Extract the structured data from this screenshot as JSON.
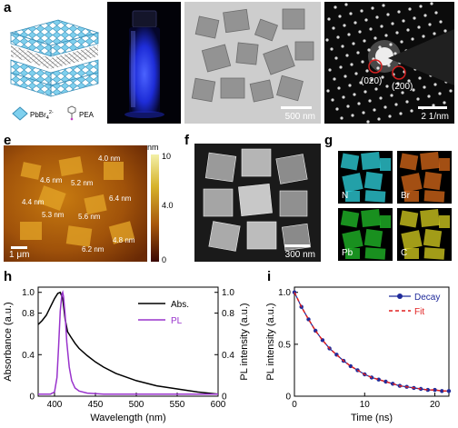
{
  "panels": {
    "a": {
      "label": "a",
      "legend": {
        "octahedron": "PbBr",
        "octahedron_sub": "4",
        "octahedron_sup": "2-",
        "molecule": "PEA"
      },
      "colors": {
        "octahedron": "#7fd0ee",
        "molecule": "#555555"
      }
    },
    "b": {
      "label": "b",
      "colors": {
        "glow": "#2f3bff"
      }
    },
    "c": {
      "label": "c",
      "scale_bar": "500 nm"
    },
    "d": {
      "label": "d",
      "spots": [
        "(020)",
        "(200)"
      ],
      "scale_bar": "2 1/nm",
      "colors": {
        "circle": "#d32020"
      }
    },
    "e": {
      "label": "e",
      "colorbar_unit": "nm",
      "colorbar_ticks": [
        "10",
        "4.0",
        "0"
      ],
      "thickness_labels": [
        "4.0 nm",
        "4.6 nm",
        "5.2 nm",
        "4.4 nm",
        "6.4 nm",
        "5.3 nm",
        "5.6 nm",
        "4.8 nm",
        "6.2 nm"
      ],
      "scale_bar": "1 μm"
    },
    "f": {
      "label": "f",
      "scale_bar": "300 nm"
    },
    "g": {
      "label": "g",
      "maps": [
        {
          "element": "N",
          "color": "#2fd6e0"
        },
        {
          "element": "Br",
          "color": "#d96a1a"
        },
        {
          "element": "Pb",
          "color": "#22c02a"
        },
        {
          "element": "C",
          "color": "#d8d020"
        }
      ]
    },
    "h": {
      "label": "h"
    },
    "i": {
      "label": "i"
    }
  },
  "chart_data": [
    {
      "panel": "h",
      "type": "line",
      "xlabel": "Wavelength (nm)",
      "ylabel_left": "Absorbance (a.u.)",
      "ylabel_right": "PL intensity (a.u.)",
      "xlim": [
        380,
        600
      ],
      "ylim": [
        0,
        1.05
      ],
      "x_ticks": [
        "400",
        "450",
        "500",
        "550",
        "600"
      ],
      "y_ticks_left": [
        "0",
        "0.4",
        "0.8",
        "1.0"
      ],
      "y_ticks_right": [
        "0",
        "0.4",
        "0.8",
        "1.0"
      ],
      "legend": "top-right",
      "series": [
        {
          "name": "Abs.",
          "color": "#000000",
          "x": [
            380,
            385,
            390,
            395,
            400,
            404,
            407,
            410,
            413,
            416,
            420,
            425,
            430,
            440,
            450,
            460,
            475,
            500,
            525,
            550,
            575,
            600
          ],
          "y": [
            0.69,
            0.73,
            0.78,
            0.86,
            0.94,
            0.99,
            1.0,
            0.94,
            0.74,
            0.62,
            0.57,
            0.51,
            0.46,
            0.39,
            0.33,
            0.28,
            0.22,
            0.15,
            0.1,
            0.07,
            0.04,
            0.02
          ]
        },
        {
          "name": "PL",
          "color": "#9933cc",
          "x": [
            380,
            395,
            400,
            403,
            405,
            407,
            409,
            410,
            411,
            413,
            415,
            418,
            421,
            425,
            430,
            440,
            460,
            500,
            600
          ],
          "y": [
            0.02,
            0.02,
            0.04,
            0.18,
            0.48,
            0.82,
            0.98,
            1.0,
            0.96,
            0.78,
            0.52,
            0.28,
            0.15,
            0.08,
            0.05,
            0.03,
            0.02,
            0.02,
            0.02
          ]
        }
      ]
    },
    {
      "panel": "i",
      "type": "line",
      "xlabel": "Time (ns)",
      "ylabel": "PL intensity (a.u.)",
      "xlim": [
        0,
        22
      ],
      "ylim": [
        0,
        1.05
      ],
      "x_ticks": [
        "0",
        "10",
        "20"
      ],
      "y_ticks": [
        "0",
        "0.5",
        "1.0"
      ],
      "legend": "top-right",
      "series": [
        {
          "name": "Decay",
          "color": "#1f2a9a",
          "x": [
            0,
            1,
            2,
            3,
            4,
            5,
            6,
            7,
            8,
            9,
            10,
            11,
            12,
            13,
            14,
            15,
            16,
            17,
            18,
            19,
            20,
            21,
            22
          ],
          "y": [
            1.0,
            0.86,
            0.74,
            0.63,
            0.54,
            0.46,
            0.4,
            0.34,
            0.29,
            0.25,
            0.21,
            0.18,
            0.16,
            0.14,
            0.12,
            0.1,
            0.09,
            0.08,
            0.07,
            0.06,
            0.06,
            0.05,
            0.05
          ]
        },
        {
          "name": "Fit",
          "color": "#e02020",
          "x": [
            0,
            1,
            2,
            3,
            4,
            5,
            6,
            7,
            8,
            9,
            10,
            11,
            12,
            13,
            14,
            15,
            16,
            17,
            18,
            19,
            20,
            21,
            22
          ],
          "y": [
            1.0,
            0.86,
            0.74,
            0.63,
            0.54,
            0.46,
            0.4,
            0.34,
            0.29,
            0.25,
            0.21,
            0.18,
            0.16,
            0.14,
            0.12,
            0.1,
            0.09,
            0.08,
            0.07,
            0.06,
            0.06,
            0.05,
            0.05
          ]
        }
      ]
    }
  ]
}
